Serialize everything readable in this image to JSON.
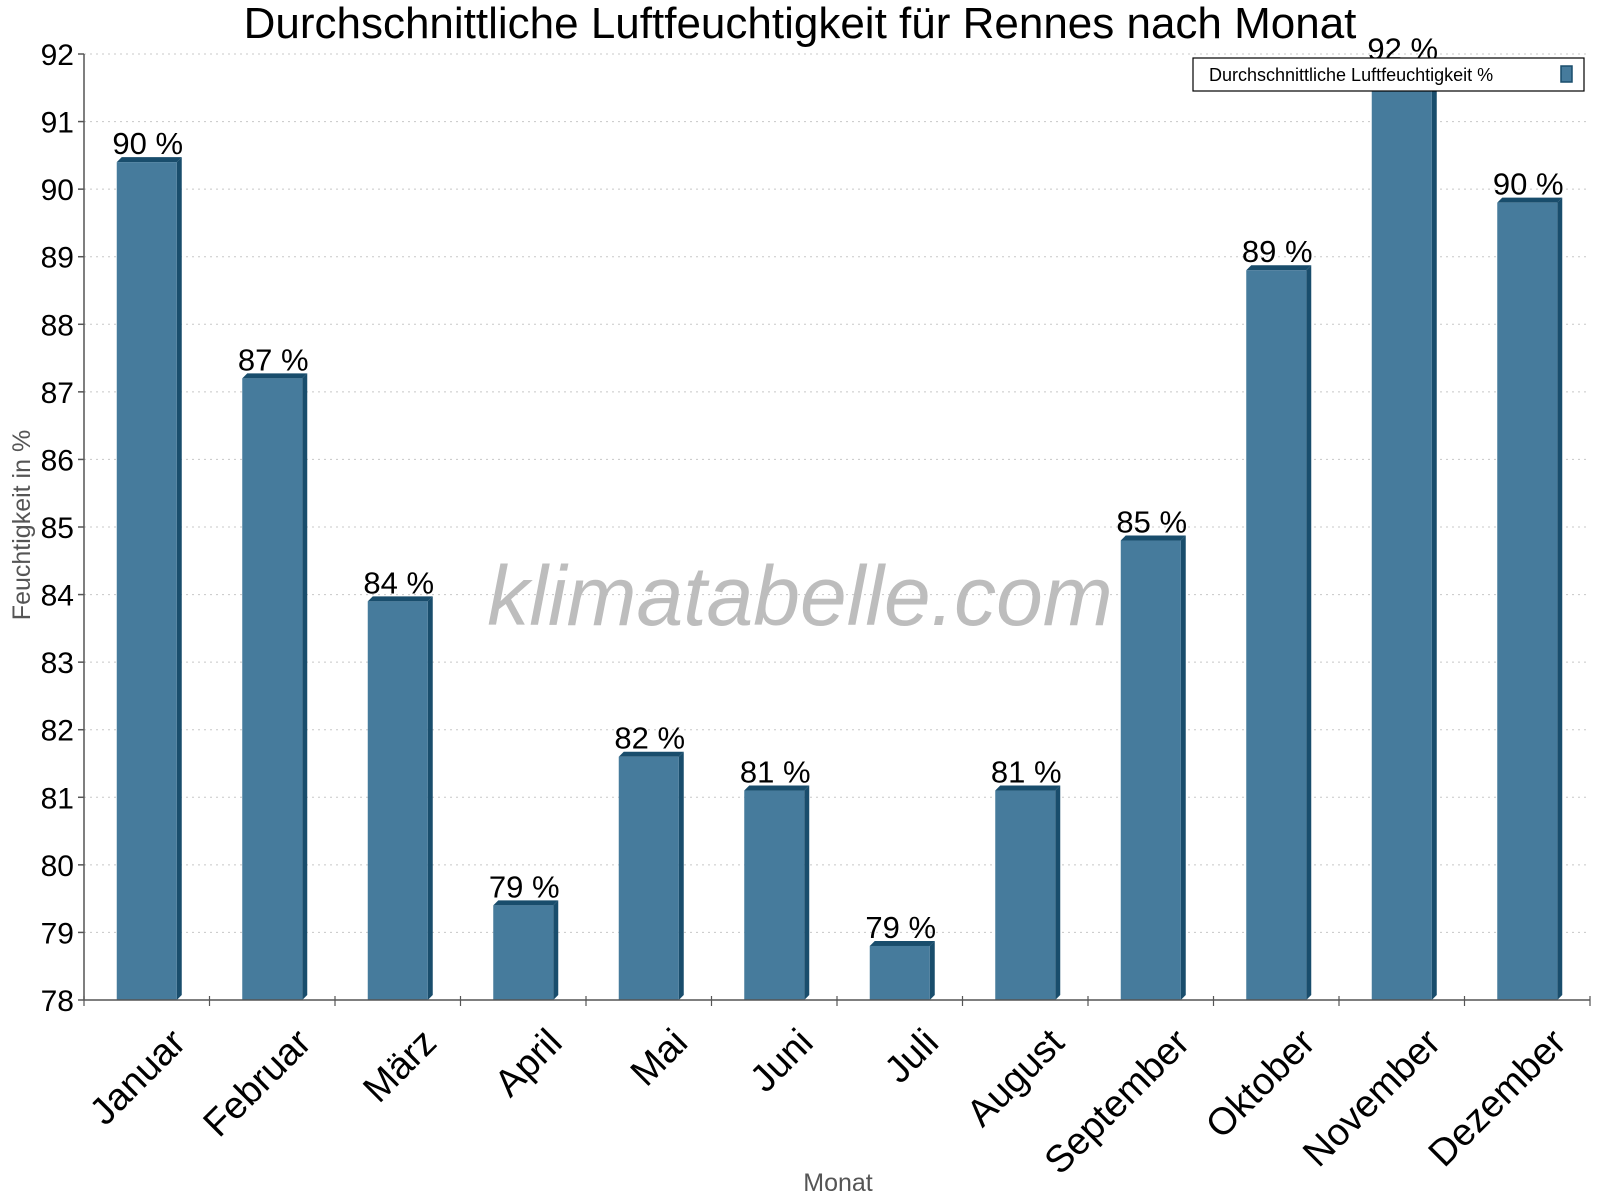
{
  "chart_data": {
    "type": "bar",
    "title": "Durchschnittliche Luftfeuchtigkeit für Rennes nach Monat",
    "xlabel": "Monat",
    "ylabel": "Feuchtigkeit in %",
    "ylim": [
      78,
      92
    ],
    "yticks": [
      78,
      79,
      80,
      81,
      82,
      83,
      84,
      85,
      86,
      87,
      88,
      89,
      90,
      91,
      92
    ],
    "grid": true,
    "legend_position": "top-right",
    "categories": [
      "Januar",
      "Februar",
      "März",
      "April",
      "Mai",
      "Juni",
      "Juli",
      "August",
      "September",
      "Oktober",
      "November",
      "Dezember"
    ],
    "series": [
      {
        "name": "Durchschnittliche Luftfeuchtigkeit %",
        "color": "#467b9c",
        "values": [
          90.4,
          87.2,
          83.9,
          79.4,
          81.6,
          81.1,
          78.8,
          81.1,
          84.8,
          88.8,
          91.8,
          89.8
        ],
        "data_labels": [
          "90 %",
          "87 %",
          "84 %",
          "79 %",
          "82 %",
          "81 %",
          "79 %",
          "81 %",
          "85 %",
          "89 %",
          "92 %",
          "90 %"
        ]
      }
    ]
  },
  "watermark": "klimatabelle.com",
  "colors": {
    "bar": "#467b9c",
    "bar_side": "#194d6c",
    "grid": "#c8c8c8",
    "axis": "#555555"
  }
}
